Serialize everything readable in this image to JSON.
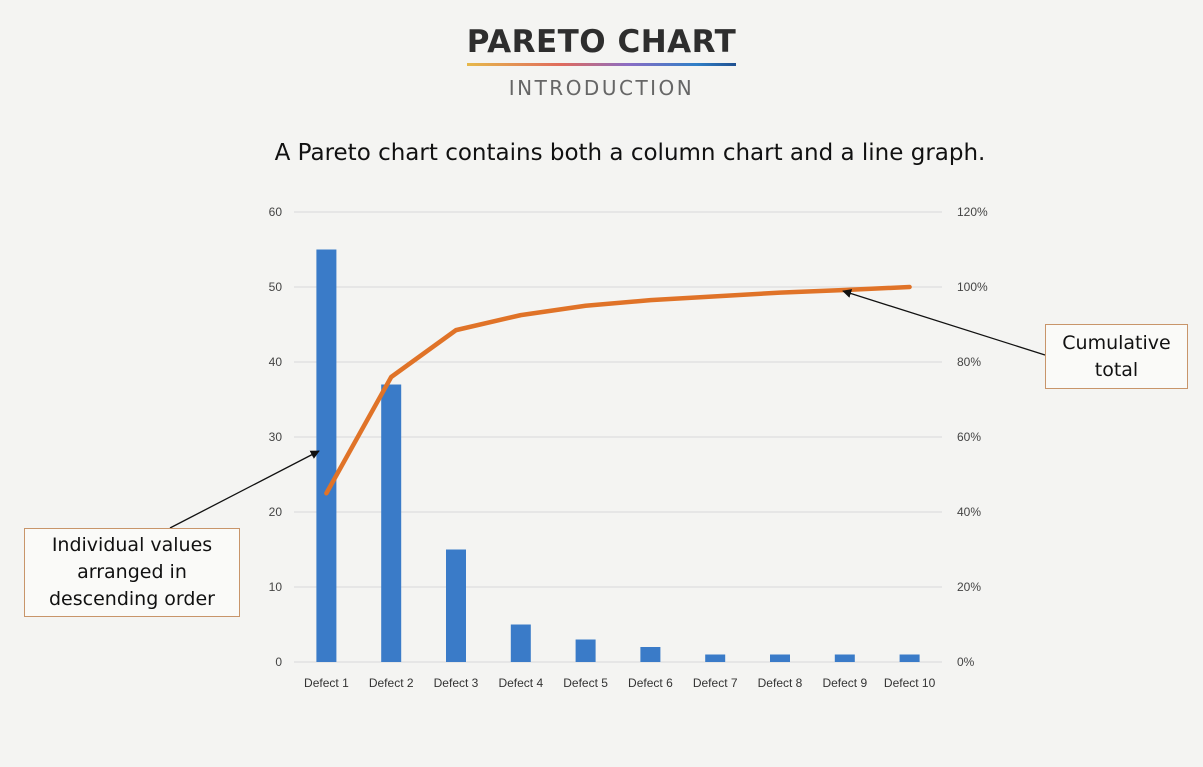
{
  "header": {
    "title": "PARETO CHART",
    "subtitle": "INTRODUCTION"
  },
  "caption": "A Pareto chart contains both a column chart and a line graph.",
  "callouts": {
    "individual": "Individual values arranged in descending order",
    "cumulative": "Cumulative total"
  },
  "colors": {
    "bar": "#3a7bc8",
    "line": "#e07328",
    "grid": "#d9d9d9",
    "callout_border": "#c8956a"
  },
  "chart_data": {
    "type": "bar",
    "categories": [
      "Defect 1",
      "Defect 2",
      "Defect 3",
      "Defect 4",
      "Defect 5",
      "Defect 6",
      "Defect 7",
      "Defect 8",
      "Defect 9",
      "Defect 10"
    ],
    "values": [
      55,
      37,
      15,
      5,
      3,
      2,
      1,
      1,
      1,
      1
    ],
    "line_series": {
      "values": [
        45,
        76,
        88.5,
        92.5,
        95,
        96.5,
        97.5,
        98.5,
        99.2,
        100
      ],
      "axis": "right"
    },
    "ylim_left": [
      0,
      60
    ],
    "yticks_left": [
      "0",
      "10",
      "20",
      "30",
      "40",
      "50",
      "60"
    ],
    "ylim_right": [
      0,
      120
    ],
    "yticks_right": [
      "0%",
      "20%",
      "40%",
      "60%",
      "80%",
      "100%",
      "120%"
    ],
    "grid": true,
    "legend": "none"
  }
}
